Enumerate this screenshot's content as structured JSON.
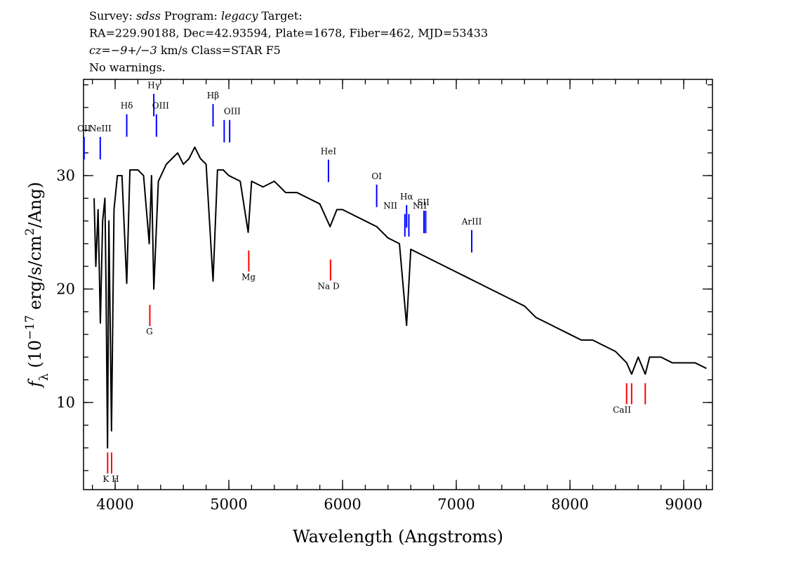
{
  "chart_data": {
    "type": "line",
    "title": [
      [
        {
          "text": "Survey: "
        },
        {
          "text": "sdss",
          "style": "italic"
        },
        {
          "text": " Program: "
        },
        {
          "text": "legacy",
          "style": "italic"
        },
        {
          "text": " Target:"
        }
      ],
      [
        {
          "text": "RA=229.90188, Dec=42.93594, Plate=1678, Fiber=462, MJD=53433"
        }
      ],
      [
        {
          "text": "cz",
          "style": "italic"
        },
        {
          "text": "="
        },
        {
          "text": "−9+/−3",
          "style": "italic"
        },
        {
          "text": " km/s Class=STAR F5"
        }
      ],
      [
        {
          "text": "No warnings."
        }
      ]
    ],
    "xlabel": "Wavelength (Angstroms)",
    "ylabel": [
      {
        "text": "f",
        "style": "italic"
      },
      {
        "text": "λ",
        "style": "sub"
      },
      {
        "text": " (10"
      },
      {
        "text": "−17",
        "style": "sup"
      },
      {
        "text": " erg/s/cm"
      },
      {
        "text": "2",
        "style": "sup"
      },
      {
        "text": "/Ang)"
      }
    ],
    "xlim": [
      3722,
      9253
    ],
    "ylim": [
      2.32,
      38.48
    ],
    "xticks": [
      4000,
      5000,
      6000,
      7000,
      8000,
      9000
    ],
    "yticks": [
      10,
      20,
      30
    ],
    "xminor_step": 200,
    "yminor_step": 2,
    "x": [
      3815,
      3830,
      3850,
      3870,
      3890,
      3910,
      3920,
      3933,
      3945,
      3968,
      3990,
      4020,
      4060,
      4102,
      4130,
      4200,
      4250,
      4300,
      4320,
      4340,
      4380,
      4450,
      4500,
      4550,
      4600,
      4650,
      4700,
      4750,
      4800,
      4861,
      4900,
      4950,
      5000,
      5100,
      5170,
      5200,
      5300,
      5400,
      5500,
      5600,
      5700,
      5800,
      5890,
      5950,
      6000,
      6100,
      6200,
      6300,
      6400,
      6500,
      6563,
      6600,
      6700,
      6800,
      6900,
      7000,
      7100,
      7200,
      7300,
      7400,
      7500,
      7600,
      7700,
      7800,
      7900,
      8000,
      8100,
      8200,
      8300,
      8400,
      8498,
      8542,
      8600,
      8662,
      8700,
      8800,
      8900,
      9000,
      9100,
      9200
    ],
    "series": [
      {
        "color": "#000000",
        "values": [
          28,
          22,
          27,
          17,
          26,
          28,
          20,
          6,
          26,
          7.5,
          27,
          30,
          30,
          20.5,
          30.5,
          30.5,
          30,
          24,
          30,
          20,
          29.5,
          31,
          31.5,
          32,
          31,
          31.5,
          32.5,
          31.5,
          31,
          20.7,
          30.5,
          30.5,
          30,
          29.5,
          25,
          29.5,
          29,
          29.5,
          28.5,
          28.5,
          28,
          27.5,
          25.5,
          27,
          27,
          26.5,
          26,
          25.5,
          24.5,
          24,
          16.8,
          23.5,
          23,
          22.5,
          22,
          21.5,
          21,
          20.5,
          20,
          19.5,
          19,
          18.5,
          17.5,
          17,
          16.5,
          16,
          15.5,
          15.5,
          15,
          14.5,
          13.5,
          12.5,
          14,
          12.5,
          14,
          14,
          13.5,
          13.5,
          13.5,
          13
        ]
      }
    ],
    "emission_color": "#0000ff",
    "absorption_color": "#ff0000",
    "emission": [
      {
        "label": "OII",
        "x": 3727,
        "y": 33.9,
        "lines": [
          3727
        ]
      },
      {
        "label": "NeIII",
        "x": 3869,
        "y": 33.9,
        "lines": [
          3869
        ]
      },
      {
        "label": "Hδ",
        "x": 4102,
        "y": 35.9,
        "lines": [
          4102
        ]
      },
      {
        "label": "Hγ",
        "x": 4340,
        "y": 37.7,
        "lines": [
          4340
        ]
      },
      {
        "label": "OIII",
        "x": 4400,
        "y": 35.9,
        "lines": [
          4363
        ]
      },
      {
        "label": "Hβ",
        "x": 4861,
        "y": 36.8,
        "lines": [
          4861
        ]
      },
      {
        "label": "OIII",
        "x": 5030,
        "y": 35.4,
        "lines": [
          4959,
          5007
        ]
      },
      {
        "label": "HeI",
        "x": 5876,
        "y": 31.9,
        "lines": [
          5876
        ]
      },
      {
        "label": "OI",
        "x": 6300,
        "y": 29.7,
        "lines": [
          6300
        ]
      },
      {
        "label": "NII",
        "x": 6420,
        "y": 27.1,
        "lines": [
          6548
        ]
      },
      {
        "label": "Hα",
        "x": 6563,
        "y": 27.9,
        "lines": [
          6563
        ]
      },
      {
        "label": "NII",
        "x": 6679,
        "y": 27.1,
        "lines": [
          6583
        ]
      },
      {
        "label": "SII",
        "x": 6710,
        "y": 27.4,
        "lines": [
          6716,
          6731
        ]
      },
      {
        "label": "ArIII",
        "x": 7136,
        "y": 25.7,
        "lines": [
          7136
        ]
      }
    ],
    "absorption": [
      {
        "label": "K H",
        "x": 3963,
        "y": 3.0,
        "lines": [
          3934,
          3969
        ]
      },
      {
        "label": "G",
        "x": 4302,
        "y": 16.0,
        "lines": [
          4305
        ]
      },
      {
        "label": "Mg",
        "x": 5173,
        "y": 20.8,
        "lines": [
          5175
        ]
      },
      {
        "label": "Na D",
        "x": 5877,
        "y": 20.0,
        "lines": [
          5894
        ]
      },
      {
        "label": "CaII",
        "x": 8457,
        "y": 9.1,
        "lines": [
          8498,
          8542,
          8662
        ]
      }
    ]
  }
}
